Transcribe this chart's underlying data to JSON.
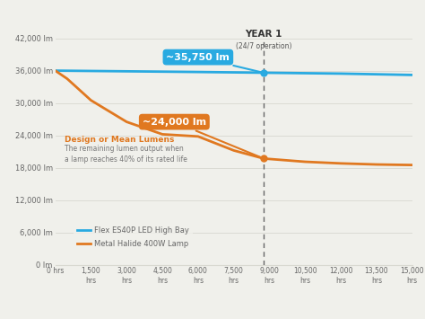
{
  "background_color": "#f0f0eb",
  "led_color": "#29aae1",
  "mh_color": "#e07820",
  "grid_color": "#d8d8d0",
  "text_color": "#666666",
  "dashed_line_color": "#666666",
  "led_line": {
    "x": [
      0,
      6000,
      9000,
      12000,
      15000
    ],
    "y": [
      36000,
      35750,
      35600,
      35450,
      35200
    ]
  },
  "mh_line": {
    "x": [
      0,
      500,
      1500,
      3000,
      4500,
      6000,
      7500,
      8760,
      10500,
      12000,
      13500,
      15000
    ],
    "y": [
      36000,
      34500,
      30500,
      26500,
      24200,
      23800,
      21200,
      19700,
      19100,
      18800,
      18600,
      18500
    ]
  },
  "xlim": [
    0,
    15000
  ],
  "ylim": [
    0,
    42000
  ],
  "xticks": [
    0,
    1500,
    3000,
    4500,
    6000,
    7500,
    9000,
    10500,
    12000,
    13500,
    15000
  ],
  "xtick_labels": [
    "0 hrs",
    "1,500\nhrs",
    "3,000\nhrs",
    "4,500\nhrs",
    "6,000\nhrs",
    "7,500\nhrs",
    "9,000\nhrs",
    "10,500\nhrs",
    "12,000\nhrs",
    "13,500\nhrs",
    "15,000\nhrs"
  ],
  "yticks": [
    0,
    6000,
    12000,
    18000,
    24000,
    30000,
    36000,
    42000
  ],
  "ytick_labels": [
    "0 lm",
    "6,000 lm",
    "12,000 lm",
    "18,000 lm",
    "24,000 lm",
    "30,000 lm",
    "36,000 lm",
    "42,000 lm"
  ],
  "year1_x": 8760,
  "year1_label": "YEAR 1",
  "year1_sublabel": "(24/7 operation)",
  "led_dot_x": 8760,
  "led_dot_y": 35600,
  "led_annotation_text": "~35,750 lm",
  "led_bubble_x": 6000,
  "led_bubble_y": 38500,
  "mh_dot_x": 8760,
  "mh_dot_y": 19700,
  "mh_annotation_text": "~24,000 lm",
  "mh_bubble_x": 5000,
  "mh_bubble_y": 26500,
  "design_lumens_title": "Design or Mean Lumens",
  "design_lumens_text": "The remaining lumen output when\na lamp reaches 40% of its rated life",
  "design_lumens_x": 400,
  "design_lumens_y": 22500,
  "legend_led_label": "Flex ES40P LED High Bay",
  "legend_mh_label": "Metal Halide 400W Lamp"
}
